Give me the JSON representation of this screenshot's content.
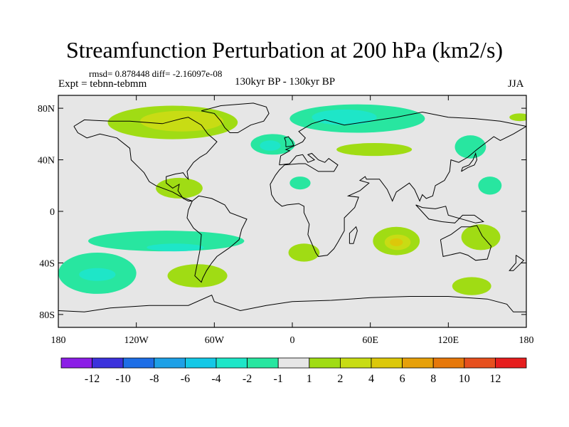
{
  "title": "Streamfunction Perturbation at 200 hPa (km2/s)",
  "stats": "rmsd= 0.878448 diff= -2.16097e-08",
  "experiment": "Expt = tebnn-tebmm",
  "center_label": "130kyr BP - 130kyr BP",
  "season": "JJA",
  "map": {
    "projection": "cylindrical equidistant",
    "lon_range": [
      -180,
      180
    ],
    "lat_range": [
      -90,
      90
    ],
    "land_fill": "#e6e6e6",
    "y_ticks": [
      {
        "value": 80,
        "label": "80N"
      },
      {
        "value": 40,
        "label": "40N"
      },
      {
        "value": 0,
        "label": "0"
      },
      {
        "value": -40,
        "label": "40S"
      },
      {
        "value": -80,
        "label": "80S"
      }
    ],
    "x_ticks": [
      {
        "value": -180,
        "label": "180"
      },
      {
        "value": -120,
        "label": "120W"
      },
      {
        "value": -60,
        "label": "60W"
      },
      {
        "value": 0,
        "label": "0"
      },
      {
        "value": 60,
        "label": "60E"
      },
      {
        "value": 120,
        "label": "120E"
      },
      {
        "value": 180,
        "label": "180"
      }
    ]
  },
  "colorbar": {
    "colors": [
      "#8b1ee6",
      "#3c32dc",
      "#1e6ee6",
      "#1ea0e6",
      "#14c8e6",
      "#1ee6c8",
      "#28e6a0",
      "#e6e6e6",
      "#a0dc14",
      "#c8dc14",
      "#dcc80a",
      "#e6a00a",
      "#e6780a",
      "#e6501e",
      "#e61e1e"
    ],
    "labels": [
      "-12",
      "-10",
      "-8",
      "-6",
      "-4",
      "-2",
      "-1",
      "1",
      "2",
      "4",
      "6",
      "8",
      "10",
      "12"
    ]
  },
  "contour_regions": [
    {
      "name": "north-america-arctic-high",
      "level": "2",
      "color": "#a0dc14",
      "lon": -92,
      "lat": 69,
      "rx_deg": 50,
      "ry_deg": 13
    },
    {
      "name": "north-america-arctic-core",
      "level": "4",
      "color": "#c8dc14",
      "lon": -85,
      "lat": 70,
      "rx_deg": 32,
      "ry_deg": 8
    },
    {
      "name": "eurasia-arctic-low",
      "level": "-2",
      "color": "#28e6a0",
      "lon": 50,
      "lat": 72,
      "rx_deg": 52,
      "ry_deg": 11
    },
    {
      "name": "eurasia-arctic-core",
      "level": "-4",
      "color": "#1ee6c8",
      "lon": 40,
      "lat": 73,
      "rx_deg": 25,
      "ry_deg": 6
    },
    {
      "name": "north-atlantic-low",
      "level": "-2",
      "color": "#28e6a0",
      "lon": -15,
      "lat": 52,
      "rx_deg": 17,
      "ry_deg": 8
    },
    {
      "name": "north-atlantic-core",
      "level": "-4",
      "color": "#1ee6c8",
      "lon": -17,
      "lat": 51,
      "rx_deg": 8,
      "ry_deg": 4
    },
    {
      "name": "central-asia-high",
      "level": "2",
      "color": "#a0dc14",
      "lon": 63,
      "lat": 48,
      "rx_deg": 29,
      "ry_deg": 5
    },
    {
      "name": "east-asia-low",
      "level": "-2",
      "color": "#28e6a0",
      "lon": 137,
      "lat": 50,
      "rx_deg": 12,
      "ry_deg": 9
    },
    {
      "name": "pacific-high",
      "level": "2",
      "color": "#a0dc14",
      "lon": 175,
      "lat": 73,
      "rx_deg": 8,
      "ry_deg": 3
    },
    {
      "name": "caribbean-high",
      "level": "2",
      "color": "#a0dc14",
      "lon": -87,
      "lat": 18,
      "rx_deg": 18,
      "ry_deg": 8
    },
    {
      "name": "mediterranean-low",
      "level": "-2",
      "color": "#28e6a0",
      "lon": 6,
      "lat": 22,
      "rx_deg": 8,
      "ry_deg": 5
    },
    {
      "name": "west-pacific-low",
      "level": "-2",
      "color": "#28e6a0",
      "lon": 152,
      "lat": 20,
      "rx_deg": 9,
      "ry_deg": 7
    },
    {
      "name": "south-pacific-low",
      "level": "-2",
      "color": "#28e6a0",
      "lon": -97,
      "lat": -23,
      "rx_deg": 60,
      "ry_deg": 8
    },
    {
      "name": "south-pacific-core",
      "level": "-4",
      "color": "#1ee6c8",
      "lon": -90,
      "lat": -28,
      "rx_deg": 22,
      "ry_deg": 3
    },
    {
      "name": "south-atlantic-high",
      "level": "2",
      "color": "#a0dc14",
      "lon": 9,
      "lat": -32,
      "rx_deg": 12,
      "ry_deg": 7
    },
    {
      "name": "indian-ocean-high",
      "level": "2",
      "color": "#a0dc14",
      "lon": 80,
      "lat": -23,
      "rx_deg": 18,
      "ry_deg": 11
    },
    {
      "name": "indian-ocean-mid",
      "level": "4",
      "color": "#c8dc14",
      "lon": 81,
      "lat": -24,
      "rx_deg": 10,
      "ry_deg": 6
    },
    {
      "name": "indian-ocean-core",
      "level": "6",
      "color": "#dcc80a",
      "lon": 80,
      "lat": -24,
      "rx_deg": 5,
      "ry_deg": 3
    },
    {
      "name": "australia-high",
      "level": "2",
      "color": "#a0dc14",
      "lon": 145,
      "lat": -20,
      "rx_deg": 15,
      "ry_deg": 10
    },
    {
      "name": "south-pacific-west-low",
      "level": "-2",
      "color": "#28e6a0",
      "lon": -150,
      "lat": -48,
      "rx_deg": 30,
      "ry_deg": 16
    },
    {
      "name": "south-pacific-west-core",
      "level": "-4",
      "color": "#1ee6c8",
      "lon": -150,
      "lat": -49,
      "rx_deg": 14,
      "ry_deg": 5
    },
    {
      "name": "southern-ocean-high",
      "level": "2",
      "color": "#a0dc14",
      "lon": -73,
      "lat": -50,
      "rx_deg": 23,
      "ry_deg": 9
    },
    {
      "name": "southern-ocean-east-high",
      "level": "2",
      "color": "#a0dc14",
      "lon": 138,
      "lat": -58,
      "rx_deg": 15,
      "ry_deg": 7
    }
  ],
  "coastlines": [
    {
      "name": "north-america-coast",
      "points": [
        [
          -168,
          66
        ],
        [
          -160,
          71
        ],
        [
          -140,
          70
        ],
        [
          -125,
          70
        ],
        [
          -100,
          68
        ],
        [
          -85,
          72
        ],
        [
          -80,
          73
        ],
        [
          -70,
          67
        ],
        [
          -65,
          60
        ],
        [
          -58,
          54
        ],
        [
          -66,
          45
        ],
        [
          -71,
          42
        ],
        [
          -76,
          38
        ],
        [
          -81,
          31
        ],
        [
          -80,
          25
        ],
        [
          -82,
          27
        ],
        [
          -84,
          30
        ],
        [
          -90,
          29
        ],
        [
          -97,
          27
        ],
        [
          -97,
          22
        ],
        [
          -92,
          18
        ],
        [
          -87,
          21
        ],
        [
          -88,
          16
        ],
        [
          -84,
          10
        ],
        [
          -80,
          8
        ],
        [
          -77,
          8
        ]
      ]
    },
    {
      "name": "north-america-west-coast",
      "points": [
        [
          -77,
          8
        ],
        [
          -85,
          11
        ],
        [
          -92,
          15
        ],
        [
          -105,
          20
        ],
        [
          -110,
          23
        ],
        [
          -114,
          30
        ],
        [
          -117,
          33
        ],
        [
          -124,
          40
        ],
        [
          -125,
          49
        ],
        [
          -135,
          57
        ],
        [
          -148,
          60
        ],
        [
          -158,
          57
        ],
        [
          -165,
          61
        ],
        [
          -168,
          66
        ]
      ]
    },
    {
      "name": "greenland-coast",
      "points": [
        [
          -55,
          82
        ],
        [
          -30,
          84
        ],
        [
          -20,
          81
        ],
        [
          -18,
          76
        ],
        [
          -22,
          70
        ],
        [
          -32,
          67
        ],
        [
          -42,
          61
        ],
        [
          -48,
          61
        ],
        [
          -52,
          65
        ],
        [
          -55,
          70
        ],
        [
          -60,
          76
        ],
        [
          -70,
          78
        ],
        [
          -55,
          82
        ]
      ]
    },
    {
      "name": "south-america-coast",
      "points": [
        [
          -77,
          8
        ],
        [
          -72,
          12
        ],
        [
          -62,
          10
        ],
        [
          -52,
          5
        ],
        [
          -48,
          -1
        ],
        [
          -35,
          -6
        ],
        [
          -39,
          -14
        ],
        [
          -41,
          -22
        ],
        [
          -48,
          -28
        ],
        [
          -58,
          -35
        ],
        [
          -62,
          -40
        ],
        [
          -66,
          -46
        ],
        [
          -69,
          -52
        ],
        [
          -70,
          -55
        ],
        [
          -75,
          -50
        ],
        [
          -73,
          -40
        ],
        [
          -71,
          -30
        ],
        [
          -70,
          -18
        ],
        [
          -76,
          -13
        ],
        [
          -81,
          -5
        ],
        [
          -80,
          1
        ],
        [
          -77,
          8
        ]
      ]
    },
    {
      "name": "eurasia-africa-coast",
      "points": [
        [
          -10,
          36
        ],
        [
          -9,
          43
        ],
        [
          -2,
          47
        ],
        [
          -5,
          48
        ],
        [
          2,
          51
        ],
        [
          8,
          54
        ],
        [
          10,
          57
        ],
        [
          5,
          62
        ],
        [
          15,
          68
        ],
        [
          25,
          71
        ],
        [
          40,
          67
        ],
        [
          60,
          70
        ],
        [
          80,
          73
        ],
        [
          100,
          77
        ],
        [
          120,
          73
        ],
        [
          140,
          72
        ],
        [
          160,
          70
        ],
        [
          180,
          66
        ],
        [
          170,
          60
        ],
        [
          160,
          55
        ],
        [
          155,
          58
        ],
        [
          142,
          48
        ],
        [
          135,
          42
        ],
        [
          128,
          38
        ],
        [
          122,
          40
        ],
        [
          121,
          31
        ],
        [
          117,
          24
        ],
        [
          110,
          20
        ],
        [
          108,
          12
        ],
        [
          103,
          10
        ],
        [
          100,
          13
        ],
        [
          98,
          8
        ],
        [
          94,
          17
        ],
        [
          90,
          22
        ],
        [
          80,
          15
        ],
        [
          77,
          8
        ],
        [
          73,
          17
        ],
        [
          67,
          25
        ],
        [
          57,
          25
        ],
        [
          56,
          27
        ],
        [
          52,
          24
        ],
        [
          59,
          22
        ],
        [
          52,
          16
        ],
        [
          43,
          12
        ],
        [
          51,
          11
        ],
        [
          48,
          3
        ],
        [
          40,
          -5
        ],
        [
          40,
          -15
        ],
        [
          35,
          -24
        ],
        [
          32,
          -29
        ],
        [
          27,
          -34
        ],
        [
          20,
          -35
        ],
        [
          18,
          -32
        ],
        [
          12,
          -18
        ],
        [
          13,
          -10
        ],
        [
          9,
          -1
        ],
        [
          9,
          4
        ],
        [
          5,
          6
        ],
        [
          -4,
          5
        ],
        [
          -8,
          4
        ],
        [
          -13,
          8
        ],
        [
          -16,
          13
        ],
        [
          -17,
          21
        ],
        [
          -13,
          28
        ],
        [
          -10,
          32
        ],
        [
          -6,
          36
        ],
        [
          5,
          37
        ],
        [
          10,
          37
        ],
        [
          20,
          31
        ],
        [
          32,
          31
        ],
        [
          35,
          36
        ],
        [
          28,
          41
        ],
        [
          25,
          38
        ],
        [
          20,
          40
        ],
        [
          15,
          45
        ],
        [
          12,
          44
        ],
        [
          17,
          40
        ],
        [
          12,
          38
        ],
        [
          8,
          44
        ],
        [
          3,
          43
        ],
        [
          -2,
          37
        ],
        [
          -10,
          36
        ]
      ]
    },
    {
      "name": "australia-coast",
      "points": [
        [
          114,
          -22
        ],
        [
          122,
          -18
        ],
        [
          130,
          -12
        ],
        [
          137,
          -12
        ],
        [
          142,
          -11
        ],
        [
          146,
          -19
        ],
        [
          153,
          -27
        ],
        [
          150,
          -37
        ],
        [
          141,
          -38
        ],
        [
          135,
          -34
        ],
        [
          129,
          -32
        ],
        [
          116,
          -35
        ],
        [
          114,
          -22
        ]
      ]
    },
    {
      "name": "antarctica-coast",
      "points": [
        [
          -180,
          -77
        ],
        [
          -160,
          -78
        ],
        [
          -140,
          -75
        ],
        [
          -110,
          -73
        ],
        [
          -80,
          -73
        ],
        [
          -62,
          -65
        ],
        [
          -60,
          -70
        ],
        [
          -40,
          -77
        ],
        [
          -20,
          -73
        ],
        [
          0,
          -70
        ],
        [
          30,
          -69
        ],
        [
          60,
          -67
        ],
        [
          90,
          -66
        ],
        [
          120,
          -66
        ],
        [
          150,
          -68
        ],
        [
          165,
          -72
        ],
        [
          170,
          -78
        ],
        [
          180,
          -78
        ]
      ]
    },
    {
      "name": "uk-coast",
      "points": [
        [
          -5,
          50
        ],
        [
          1,
          51
        ],
        [
          0,
          54
        ],
        [
          -3,
          58
        ],
        [
          -6,
          57
        ],
        [
          -5,
          54
        ],
        [
          -5,
          50
        ]
      ]
    },
    {
      "name": "japan-coast",
      "points": [
        [
          130,
          31
        ],
        [
          135,
          34
        ],
        [
          140,
          36
        ],
        [
          142,
          40
        ],
        [
          141,
          45
        ],
        [
          139,
          40
        ],
        [
          136,
          36
        ],
        [
          131,
          34
        ],
        [
          130,
          31
        ]
      ]
    },
    {
      "name": "madagascar-coast",
      "points": [
        [
          44,
          -25
        ],
        [
          47,
          -25
        ],
        [
          50,
          -15
        ],
        [
          49,
          -12
        ],
        [
          44,
          -17
        ],
        [
          44,
          -25
        ]
      ]
    },
    {
      "name": "new-zealand-coast",
      "points": [
        [
          172,
          -34
        ],
        [
          178,
          -38
        ],
        [
          175,
          -41
        ],
        [
          170,
          -46
        ],
        [
          167,
          -46
        ],
        [
          172,
          -40
        ],
        [
          172,
          -34
        ]
      ]
    },
    {
      "name": "indonesia-coast",
      "points": [
        [
          95,
          5
        ],
        [
          105,
          -6
        ],
        [
          115,
          -8
        ],
        [
          125,
          -9
        ],
        [
          131,
          -3
        ],
        [
          140,
          -3
        ],
        [
          147,
          -8
        ],
        [
          141,
          -9
        ],
        [
          120,
          -3
        ],
        [
          118,
          4
        ],
        [
          110,
          2
        ],
        [
          100,
          3
        ],
        [
          95,
          5
        ]
      ]
    }
  ]
}
